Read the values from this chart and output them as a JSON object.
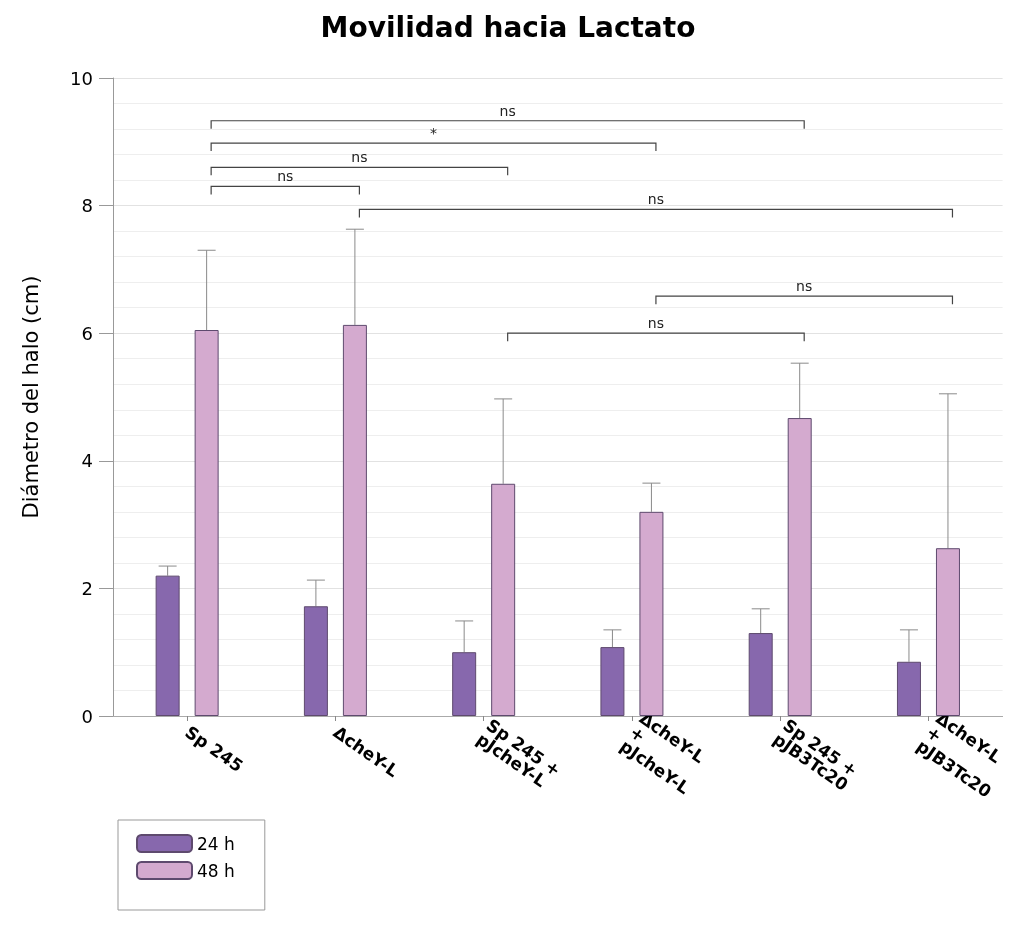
{
  "chart_data": {
    "type": "bar",
    "title": "Movilidad hacia Lactato",
    "ylabel": "Diámetro del halo (cm)",
    "categories": [
      "Sp 245",
      "ΔcheY-L",
      "Sp 245 + pJcheY-L",
      "ΔcheY-L + pJcheY-L",
      "Sp 245 + pJB3Tc20",
      "ΔcheY-L+ pJB3Tc20"
    ],
    "series": [
      {
        "name": "24 h",
        "color": "#8768ad",
        "values": [
          2.2,
          1.72,
          1.0,
          1.08,
          1.3,
          0.85
        ],
        "errors": [
          [
            2.2,
            2.35
          ],
          [
            1.72,
            2.13
          ],
          [
            1.0,
            1.49
          ],
          [
            1.08,
            1.35
          ],
          [
            1.3,
            1.68
          ],
          [
            0.85,
            1.35
          ]
        ]
      },
      {
        "name": "48 h",
        "color": "#d4aacf",
        "values": [
          6.05,
          6.13,
          3.64,
          3.2,
          4.67,
          2.63
        ],
        "errors": [
          [
            6.05,
            7.3
          ],
          [
            6.13,
            7.63
          ],
          [
            3.64,
            4.97
          ],
          [
            3.2,
            3.65
          ],
          [
            4.67,
            5.53
          ],
          [
            2.63,
            5.05
          ]
        ]
      }
    ],
    "ylim": [
      0,
      10
    ],
    "yticks": [
      0,
      2,
      4,
      6,
      8,
      10
    ],
    "grid": true,
    "legend": "bottom left",
    "annotations": [
      "ns",
      "*",
      "ns",
      "ns",
      "ns",
      "ns",
      "ns"
    ]
  }
}
